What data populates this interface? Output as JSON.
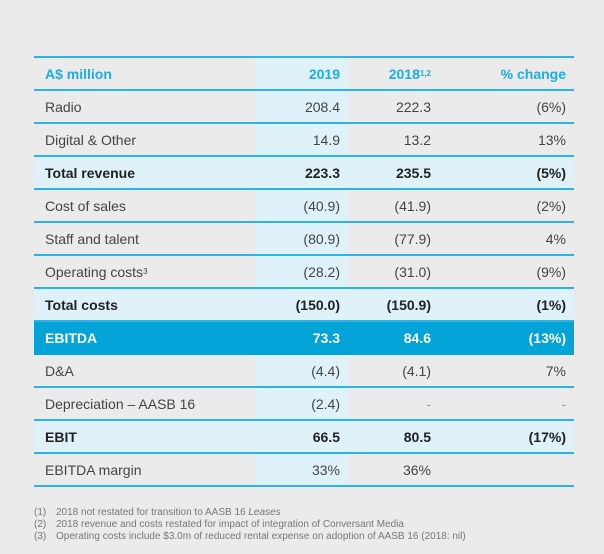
{
  "header": {
    "label": "A$ million",
    "col2019": "2019",
    "col2018": "2018",
    "col2018_sup": "1,2",
    "change": "% change"
  },
  "rows": [
    {
      "label": "Radio",
      "sup": "",
      "v2019": "208.4",
      "v2018": "222.3",
      "change": "(6%)",
      "style": "normal"
    },
    {
      "label": "Digital & Other",
      "sup": "",
      "v2019": "14.9",
      "v2018": "13.2",
      "change": "13%",
      "style": "normal"
    },
    {
      "label": "Total revenue",
      "sup": "",
      "v2019": "223.3",
      "v2018": "235.5",
      "change": "(5%)",
      "style": "total"
    },
    {
      "label": "Cost of sales",
      "sup": "",
      "v2019": "(40.9)",
      "v2018": "(41.9)",
      "change": "(2%)",
      "style": "normal"
    },
    {
      "label": "Staff and talent",
      "sup": "",
      "v2019": "(80.9)",
      "v2018": "(77.9)",
      "change": "4%",
      "style": "normal"
    },
    {
      "label": "Operating costs",
      "sup": "3",
      "v2019": "(28.2)",
      "v2018": "(31.0)",
      "change": "(9%)",
      "style": "normal"
    },
    {
      "label": "Total costs",
      "sup": "",
      "v2019": "(150.0)",
      "v2018": "(150.9)",
      "change": "(1%)",
      "style": "total"
    },
    {
      "label": "EBITDA",
      "sup": "",
      "v2019": "73.3",
      "v2018": "84.6",
      "change": "(13%)",
      "style": "hl"
    },
    {
      "label": "D&A",
      "sup": "",
      "v2019": "(4.4)",
      "v2018": "(4.1)",
      "change": "7%",
      "style": "normal"
    },
    {
      "label": "Depreciation – AASB 16",
      "sup": "",
      "v2019": "(2.4)",
      "v2018": "-",
      "change": "-",
      "style": "normal"
    },
    {
      "label": "EBIT",
      "sup": "",
      "v2019": "66.5",
      "v2018": "80.5",
      "change": "(17%)",
      "style": "total"
    },
    {
      "label": "EBITDA margin",
      "sup": "",
      "v2019": "33%",
      "v2018": "36%",
      "change": "",
      "style": "normal"
    }
  ],
  "footnotes": [
    {
      "key": "(1)",
      "text": "2018 not restated for transition to AASB 16 ",
      "italic": "Leases"
    },
    {
      "key": "(2)",
      "text": "2018 revenue and costs restated for impact of integration of Conversant Media",
      "italic": ""
    },
    {
      "key": "(3)",
      "text": "Operating costs include $3.0m of reduced rental expense on adoption of AASB 16 (2018: nil)",
      "italic": ""
    }
  ]
}
